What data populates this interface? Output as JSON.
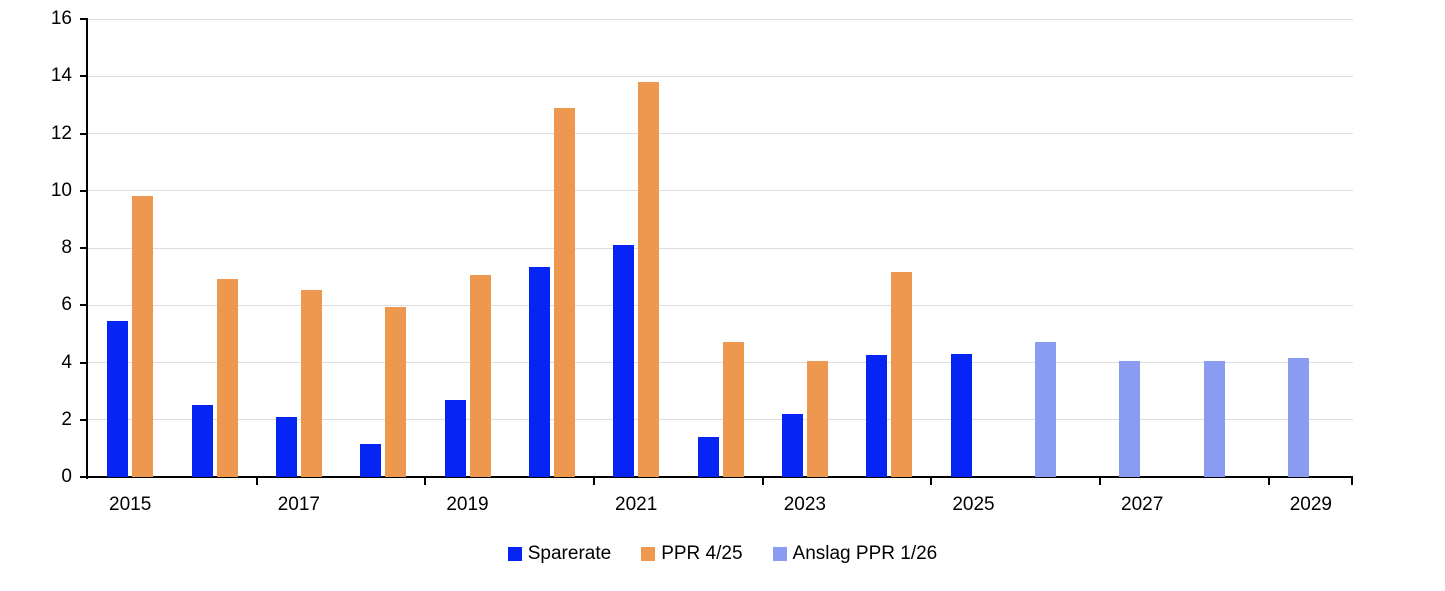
{
  "chart_data": {
    "type": "bar",
    "title": "",
    "xlabel": "",
    "ylabel": "",
    "ylim": [
      0,
      16
    ],
    "y_ticks": [
      0,
      2,
      4,
      6,
      8,
      10,
      12,
      14,
      16
    ],
    "grid": true,
    "legend_position": "bottom",
    "categories": [
      "2015",
      "2016",
      "2017",
      "2018",
      "2019",
      "2020",
      "2021",
      "2022",
      "2023",
      "2024",
      "2025",
      "2026",
      "2027",
      "2028",
      "2029"
    ],
    "x_tick_labels": [
      "2015",
      "2017",
      "2019",
      "2021",
      "2023",
      "2025",
      "2027",
      "2029"
    ],
    "series": [
      {
        "name": "Sparerate",
        "color": "#0625f5",
        "slot": "left",
        "values": [
          5.45,
          2.5,
          2.1,
          1.15,
          2.7,
          7.35,
          8.1,
          1.4,
          2.2,
          4.25,
          4.3,
          null,
          null,
          null,
          null
        ]
      },
      {
        "name": "PPR 4/25",
        "color": "#ed974f",
        "slot": "right",
        "values": [
          9.8,
          6.9,
          6.55,
          5.95,
          7.05,
          12.9,
          13.8,
          4.7,
          4.05,
          7.15,
          null,
          null,
          null,
          null,
          null
        ]
      },
      {
        "name": "Anslag PPR 1/26",
        "color": "#8a9cf2",
        "slot": "left",
        "values": [
          null,
          null,
          null,
          null,
          null,
          null,
          null,
          null,
          null,
          null,
          null,
          4.7,
          4.05,
          4.05,
          4.15
        ]
      }
    ],
    "colors": {
      "gridline": "#dedede",
      "axis": "#000000",
      "text": "#000000",
      "background": "#ffffff"
    }
  }
}
